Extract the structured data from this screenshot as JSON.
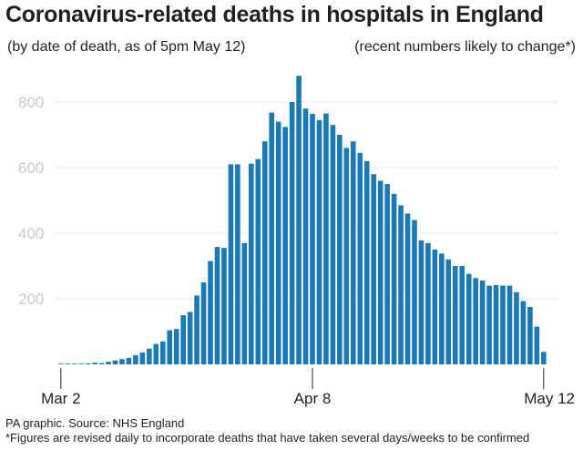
{
  "header": {
    "title": "Coronavirus-related deaths in hospitals in England",
    "subtitle_left": "(by date of death, as of 5pm May 12)",
    "subtitle_right": "(recent numbers likely to change*)"
  },
  "footer": {
    "source": "PA graphic. Source: NHS England",
    "footnote": "*Figures are revised daily to incorporate deaths that have taken several days/weeks to be confirmed"
  },
  "colors": {
    "bar": "#1a7ab5",
    "grid": "#e4e4e4",
    "axis_text": "#c9c9c9"
  },
  "chart_data": {
    "type": "bar",
    "title": "Coronavirus-related deaths in hospitals in England",
    "xlabel": "",
    "ylabel": "",
    "ylim": [
      0,
      900
    ],
    "y_ticks": [
      200,
      400,
      600,
      800
    ],
    "x_tick_labels": [
      {
        "label": "Mar 2",
        "index": 0
      },
      {
        "label": "Apr 8",
        "index": 37
      },
      {
        "label": "May 12",
        "index": 71
      }
    ],
    "grid": true,
    "categories": [
      "Mar 2",
      "Mar 3",
      "Mar 4",
      "Mar 5",
      "Mar 6",
      "Mar 7",
      "Mar 8",
      "Mar 9",
      "Mar 10",
      "Mar 11",
      "Mar 12",
      "Mar 13",
      "Mar 14",
      "Mar 15",
      "Mar 16",
      "Mar 17",
      "Mar 18",
      "Mar 19",
      "Mar 20",
      "Mar 21",
      "Mar 22",
      "Mar 23",
      "Mar 24",
      "Mar 25",
      "Mar 26",
      "Mar 27",
      "Mar 28",
      "Mar 29",
      "Mar 30",
      "Mar 31",
      "Apr 1",
      "Apr 2",
      "Apr 3",
      "Apr 4",
      "Apr 5",
      "Apr 6",
      "Apr 7",
      "Apr 8",
      "Apr 9",
      "Apr 10",
      "Apr 11",
      "Apr 12",
      "Apr 13",
      "Apr 14",
      "Apr 15",
      "Apr 16",
      "Apr 17",
      "Apr 18",
      "Apr 19",
      "Apr 20",
      "Apr 21",
      "Apr 22",
      "Apr 23",
      "Apr 24",
      "Apr 25",
      "Apr 26",
      "Apr 27",
      "Apr 28",
      "Apr 29",
      "Apr 30",
      "May 1",
      "May 2",
      "May 3",
      "May 4",
      "May 5",
      "May 6",
      "May 7",
      "May 8",
      "May 9",
      "May 10",
      "May 11",
      "May 12"
    ],
    "values": [
      0,
      1,
      0,
      2,
      3,
      5,
      4,
      8,
      12,
      16,
      20,
      28,
      36,
      48,
      62,
      70,
      104,
      108,
      150,
      160,
      210,
      250,
      315,
      358,
      355,
      610,
      610,
      370,
      612,
      626,
      680,
      768,
      740,
      724,
      800,
      880,
      780,
      764,
      745,
      765,
      730,
      700,
      660,
      680,
      645,
      620,
      580,
      560,
      550,
      520,
      485,
      460,
      440,
      378,
      370,
      350,
      338,
      320,
      300,
      300,
      276,
      263,
      256,
      240,
      242,
      240,
      240,
      220,
      193,
      175,
      115,
      38
    ]
  }
}
